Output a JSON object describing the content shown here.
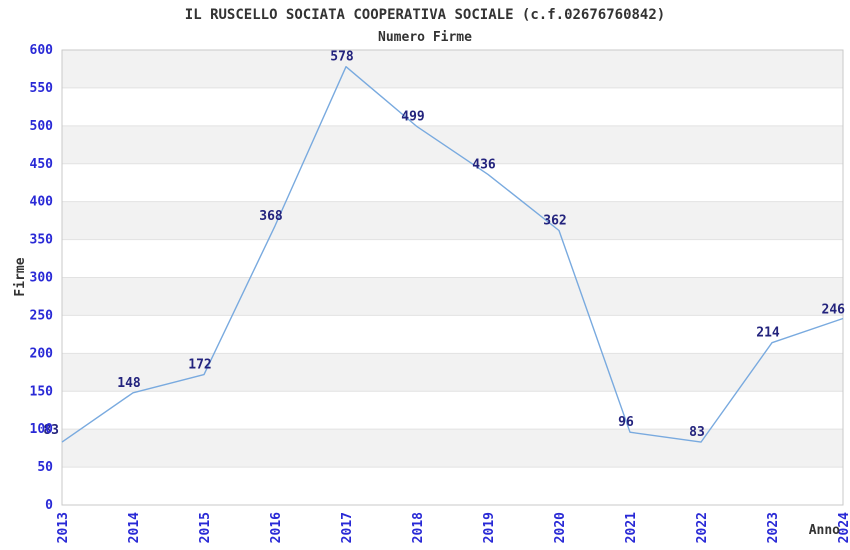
{
  "chart_data": {
    "type": "line",
    "title": "IL RUSCELLO SOCIATA COOPERATIVA SOCIALE (c.f.02676760842)",
    "subtitle": "Numero Firme",
    "xlabel": "Anno",
    "ylabel": "Firme",
    "categories": [
      "2013",
      "2014",
      "2015",
      "2016",
      "2017",
      "2018",
      "2019",
      "2020",
      "2021",
      "2022",
      "2023",
      "2024"
    ],
    "values": [
      83,
      148,
      172,
      368,
      578,
      499,
      436,
      362,
      96,
      83,
      214,
      246
    ],
    "ylim": [
      0,
      600
    ],
    "ytick_step": 50,
    "ytick_labels": [
      "0",
      "50",
      "100",
      "150",
      "200",
      "250",
      "300",
      "350",
      "400",
      "450",
      "500",
      "550",
      "600"
    ],
    "grid": true,
    "legend_position": "none",
    "band_pattern": "alternating-horizontal",
    "colors": {
      "line": "#79aadf",
      "tick_label": "#2929d6",
      "data_label": "#23237d",
      "band": "#f2f2f2",
      "gridline": "#e2e2e2",
      "border": "#c9c9c9",
      "text": "#333333",
      "background": "#ffffff"
    }
  }
}
